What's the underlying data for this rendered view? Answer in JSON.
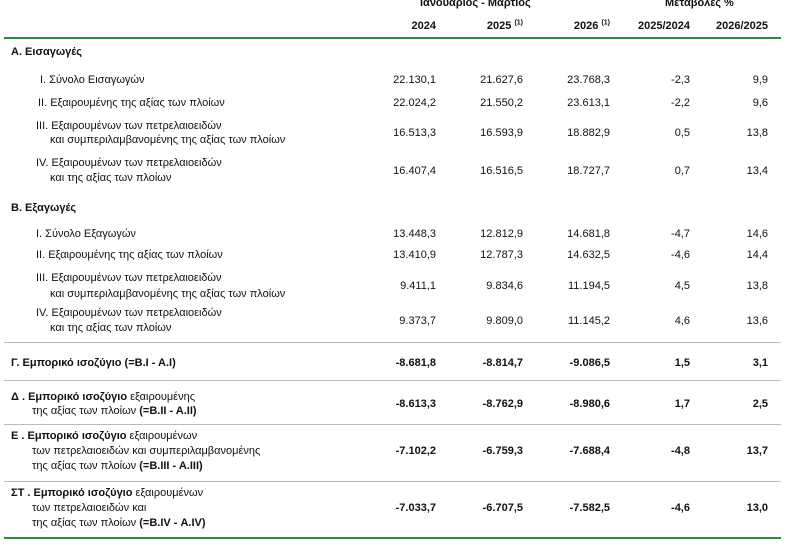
{
  "header": {
    "period": "Ιανουάριος - Μάρτιος",
    "change": "Μεταβολές %",
    "col_2024": "2024",
    "col_2025": "2025",
    "col_2025_note": "(1)",
    "col_2026": "2026",
    "col_2026_note": "(1)",
    "col_chg1": "2025/2024",
    "col_chg2": "2026/2025"
  },
  "sections": {
    "A": {
      "title": "Α. Εισαγωγές",
      "r1": {
        "label": "I.   Σύνολο Εισαγωγών",
        "v2024": "22.130,1",
        "v2025": "21.627,6",
        "v2026": "23.768,3",
        "c1": "-2,3",
        "c2": "9,9"
      },
      "r2": {
        "label": "II.  Εξαιρουμένης  της αξίας των πλοίων",
        "v2024": "22.024,2",
        "v2025": "21.550,2",
        "v2026": "23.613,1",
        "c1": "-2,2",
        "c2": "9,6"
      },
      "r3": {
        "label1": "III. Εξαιρουμένων των πετρελαιοειδών",
        "label2": "και συμπεριλαμβανομένης της αξίας των πλοίων",
        "v2024": "16.513,3",
        "v2025": "16.593,9",
        "v2026": "18.882,9",
        "c1": "0,5",
        "c2": "13,8"
      },
      "r4": {
        "label1": "IV. Εξαιρουμένων των πετρελαιοειδών",
        "label2": "και της αξίας των πλοίων",
        "v2024": "16.407,4",
        "v2025": "16.516,5",
        "v2026": "18.727,7",
        "c1": "0,7",
        "c2": "13,4"
      }
    },
    "B": {
      "title": "Β. Εξαγωγές",
      "r1": {
        "label": "I.  Σύνολο Εξαγωγών",
        "v2024": "13.448,3",
        "v2025": "12.812,9",
        "v2026": "14.681,8",
        "c1": "-4,7",
        "c2": "14,6"
      },
      "r2": {
        "label": "II.  Εξαιρουμένης της αξίας των πλοίων",
        "v2024": "13.410,9",
        "v2025": "12.787,3",
        "v2026": "14.632,5",
        "c1": "-4,6",
        "c2": "14,4"
      },
      "r3": {
        "label1": "III. Εξαιρουμένων των πετρελαιοειδών",
        "label2": "και  συμπεριλαμβανομένης της αξίας των πλοίων",
        "v2024": "9.411,1",
        "v2025": "9.834,6",
        "v2026": "11.194,5",
        "c1": "4,5",
        "c2": "13,8"
      },
      "r4": {
        "label1": "IV. Εξαιρουμένων των πετρελαιοειδών",
        "label2": "και  της αξίας των πλοίων",
        "v2024": "9.373,7",
        "v2025": "9.809,0",
        "v2026": "11.145,2",
        "c1": "4,6",
        "c2": "13,6"
      }
    },
    "G": {
      "label": "Γ. Εμπορικό ισοζύγιο (=Β.Ι - Α.Ι)",
      "v2024": "-8.681,8",
      "v2025": "-8.814,7",
      "v2026": "-9.086,5",
      "c1": "1,5",
      "c2": "3,1"
    },
    "D": {
      "label1_bold": "Δ . Εμπορικό ισοζύγιο",
      "label1_rest": " εξαιρουμένης",
      "label2_rest": "της αξίας των πλοίων ",
      "label2_bold": "(=Β.ΙΙ - Α.ΙΙ)",
      "v2024": "-8.613,3",
      "v2025": "-8.762,9",
      "v2026": "-8.980,6",
      "c1": "1,7",
      "c2": "2,5"
    },
    "E": {
      "label1_bold": "Ε . Εμπορικό ισοζύγιο",
      "label1_rest": " εξαιρουμένων",
      "label2": "των πετρελαιοειδών και συμπεριλαμβανομένης",
      "label3_rest": "της αξίας των πλοίων ",
      "label3_bold": "(=Β.ΙΙΙ - Α.ΙΙΙ)",
      "v2024": "-7.102,2",
      "v2025": "-6.759,3",
      "v2026": "-7.688,4",
      "c1": "-4,8",
      "c2": "13,7"
    },
    "ST": {
      "label1_bold": "ΣΤ . Εμπορικό ισοζύγιο",
      "label1_rest": " εξαιρουμένων",
      "label2": "των πετρελαιοειδών και",
      "label3_rest": "της αξίας των πλοίων ",
      "label3_bold": "(=Β.IV - Α.IV)",
      "v2024": "-7.033,7",
      "v2025": "-6.707,5",
      "v2026": "-7.582,5",
      "c1": "-4,6",
      "c2": "13,0"
    }
  },
  "colors": {
    "rule_green": "#2e8b3a"
  }
}
